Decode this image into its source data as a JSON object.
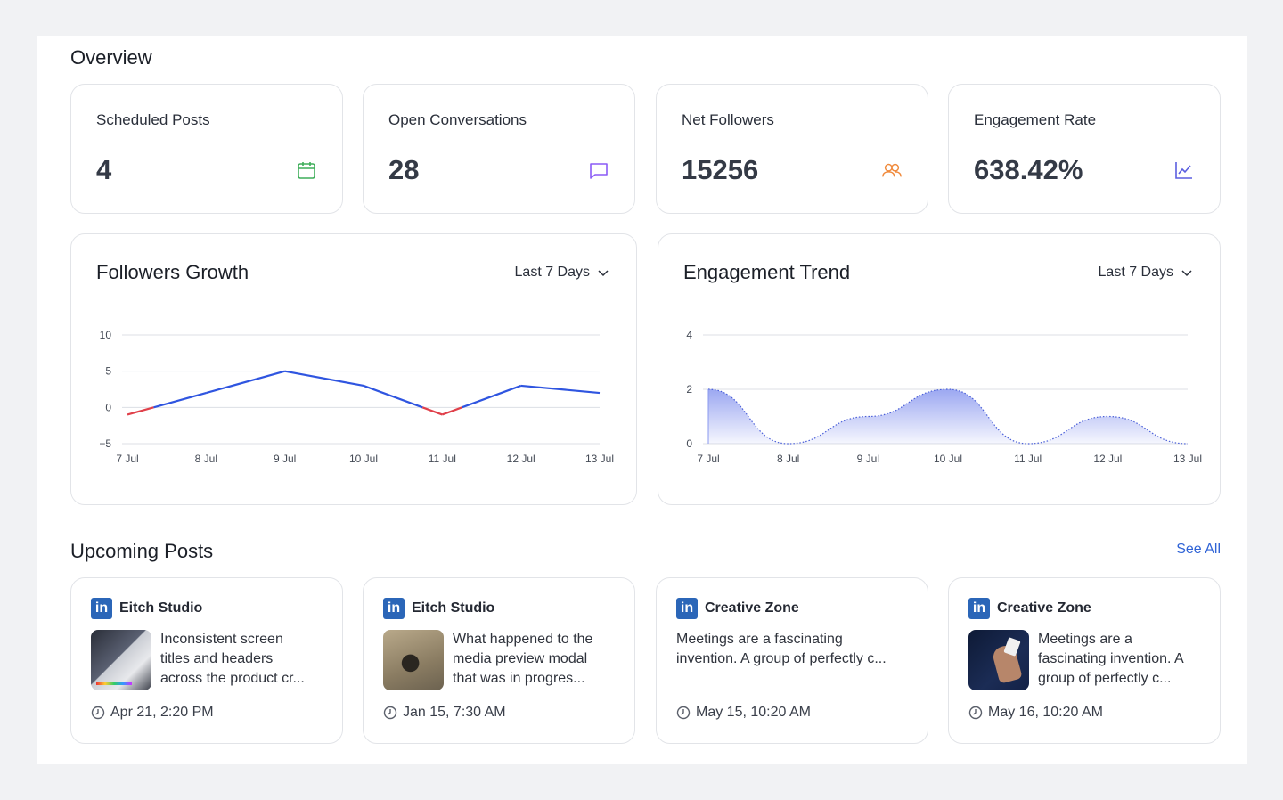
{
  "overview": {
    "title": "Overview",
    "stats": [
      {
        "label": "Scheduled Posts",
        "value": "4",
        "icon": "calendar-icon",
        "color": "#3fae5a"
      },
      {
        "label": "Open Conversations",
        "value": "28",
        "icon": "chat-icon",
        "color": "#8b5cf6"
      },
      {
        "label": "Net Followers",
        "value": "15256",
        "icon": "users-icon",
        "color": "#f08a3c"
      },
      {
        "label": "Engagement Rate",
        "value": "638.42%",
        "icon": "line-chart-icon",
        "color": "#5b5fe0"
      }
    ]
  },
  "charts": {
    "followers": {
      "title": "Followers Growth",
      "range": "Last 7 Days"
    },
    "engagement": {
      "title": "Engagement Trend",
      "range": "Last 7 Days"
    }
  },
  "chart_data": [
    {
      "type": "line",
      "title": "Followers Growth",
      "categories": [
        "7 Jul",
        "8 Jul",
        "9 Jul",
        "10 Jul",
        "11 Jul",
        "12 Jul",
        "13 Jul"
      ],
      "yticks": [
        10,
        5,
        0,
        -5
      ],
      "ylim": [
        -5,
        10
      ],
      "series": [
        {
          "values": [
            -1,
            2,
            5,
            3,
            -1,
            3,
            2
          ]
        }
      ],
      "colors": {
        "positive": "#2f55e0",
        "negative": "#e0404a"
      },
      "grid": true
    },
    {
      "type": "area",
      "title": "Engagement Trend",
      "categories": [
        "7 Jul",
        "8 Jul",
        "9 Jul",
        "10 Jul",
        "11 Jul",
        "12 Jul",
        "13 Jul"
      ],
      "yticks": [
        4,
        2,
        0
      ],
      "ylim": [
        0,
        4
      ],
      "series": [
        {
          "values": [
            2,
            0,
            1,
            2,
            0,
            1,
            0
          ]
        }
      ],
      "colors": {
        "line": "#4a5fd8",
        "fill": "#8a98ef"
      },
      "grid": true
    }
  ],
  "upcoming": {
    "title": "Upcoming Posts",
    "see_all": "See All",
    "posts": [
      {
        "author": "Eitch Studio",
        "text1": "Inconsistent screen",
        "text2": "titles and headers",
        "text3": "across the product cr...",
        "date": "Apr 21, 2:20 PM",
        "thumb": "laptop-photo"
      },
      {
        "author": "Eitch Studio",
        "text1": "What happened to the",
        "text2": "media preview modal",
        "text3": "that was in progres...",
        "date": "Jan 15, 7:30 AM",
        "thumb": "bird-photo"
      },
      {
        "author": "Creative Zone",
        "text1": "Meetings are a fascinating",
        "text2": "invention. A group of perfectly c...",
        "text3": "",
        "date": "May 15, 10:20 AM",
        "thumb": ""
      },
      {
        "author": "Creative Zone",
        "text1": "Meetings are a",
        "text2": "fascinating invention. A",
        "text3": "group of perfectly c...",
        "date": "May 16, 10:20 AM",
        "thumb": "hand-photo"
      }
    ]
  }
}
